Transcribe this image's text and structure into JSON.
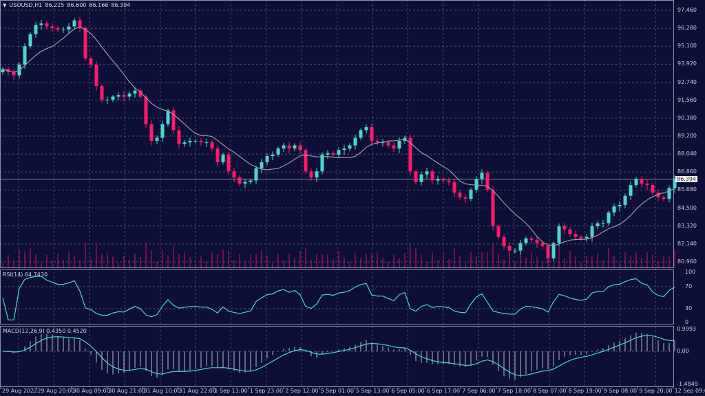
{
  "header": {
    "menu_icon": "triangle-down-icon",
    "symbol": "USOUSD,H1",
    "open": "86.225",
    "high": "86.600",
    "low": "86.166",
    "close": "86.394"
  },
  "rsi": {
    "label": "RSI(14) 64.7430",
    "levels": [
      "100",
      "70",
      "30",
      "0"
    ]
  },
  "macd": {
    "label": "MACD(12,26,9) 0.4350 0.4520",
    "levels": [
      "0.9993",
      "0.00",
      "-1.4849"
    ]
  },
  "current_price": "86.394",
  "colors": {
    "background": "#0e0f38",
    "bull": "#4fd6cc",
    "bear": "#ff1a6a",
    "grid": "#4b4f72",
    "ma": "#9a9aaa",
    "volume": "#b0125a",
    "indicator_line": "#4fd6cc"
  },
  "chart_data": {
    "type": "candlestick",
    "symbol": "USOUSD",
    "timeframe": "H1",
    "ylim": [
      80.96,
      97.46
    ],
    "price_labels": [
      "97.460",
      "96.280",
      "95.100",
      "93.920",
      "92.740",
      "91.560",
      "90.380",
      "89.200",
      "88.040",
      "86.860",
      "85.680",
      "84.500",
      "83.320",
      "82.140",
      "80.960"
    ],
    "time_labels": [
      "29 Aug 2022",
      "29 Aug 20:00",
      "30 Aug 09:00",
      "30 Aug 21:00",
      "31 Aug 10:00",
      "31 Aug 22:00",
      "1 Sep 11:00",
      "1 Sep 23:00",
      "2 Sep 12:00",
      "5 Sep 01:00",
      "5 Sep 13:00",
      "6 Sep 05:00",
      "6 Sep 17:00",
      "7 Sep 06:00",
      "7 Sep 18:00",
      "8 Sep 07:00",
      "8 Sep 19:00",
      "9 Sep 08:00",
      "9 Sep 20:00",
      "12 Sep 09:00"
    ],
    "closes": [
      93.6,
      93.4,
      93.2,
      93.9,
      95.1,
      95.9,
      96.5,
      96.6,
      96.4,
      96.3,
      96.2,
      96.2,
      96.4,
      96.8,
      96.3,
      94.3,
      93.9,
      92.5,
      91.6,
      91.6,
      91.8,
      91.9,
      91.8,
      92.0,
      92.2,
      91.8,
      90.0,
      88.9,
      89.1,
      90.0,
      90.9,
      89.6,
      88.7,
      88.8,
      88.9,
      88.9,
      88.8,
      88.8,
      88.4,
      87.5,
      88.0,
      86.9,
      86.5,
      86.1,
      86.2,
      86.3,
      87.1,
      87.5,
      87.9,
      88.0,
      88.4,
      88.6,
      88.4,
      88.6,
      88.3,
      86.9,
      86.5,
      86.9,
      88.0,
      88.1,
      88.0,
      88.3,
      88.4,
      88.6,
      89.1,
      89.6,
      89.8,
      88.9,
      88.8,
      88.8,
      88.6,
      88.4,
      88.9,
      89.1,
      86.9,
      86.2,
      86.7,
      86.9,
      86.3,
      86.4,
      86.3,
      86.2,
      85.5,
      85.2,
      85.1,
      85.7,
      86.4,
      86.8,
      85.7,
      83.3,
      82.6,
      82.0,
      81.7,
      81.7,
      82.2,
      82.5,
      82.4,
      82.2,
      82.0,
      81.2,
      82.2,
      83.3,
      83.1,
      82.8,
      82.6,
      82.5,
      82.6,
      83.3,
      83.5,
      83.5,
      84.2,
      84.6,
      84.7,
      85.3,
      86.0,
      86.4,
      86.1,
      86.0,
      85.5,
      85.2,
      85.1,
      85.8,
      86.394
    ],
    "overlays": [
      "moving-average"
    ],
    "indicators": [
      "volume",
      "RSI(14)",
      "MACD(12,26,9)"
    ],
    "grid": true
  }
}
